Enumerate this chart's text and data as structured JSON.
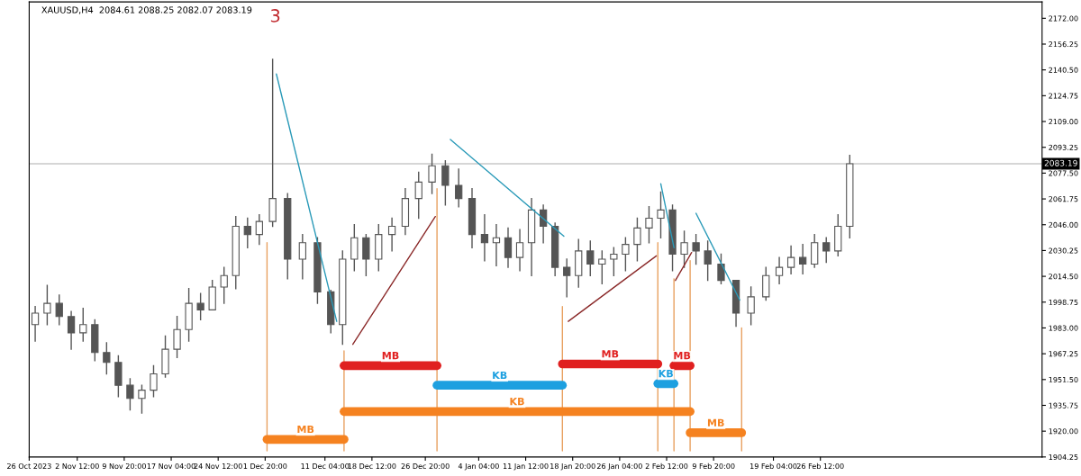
{
  "chart_data": {
    "type": "candlestick",
    "title": "XAUUSD,H4  2084.61 2088.25 2082.07 2083.19",
    "color": "#555555",
    "x": [
      "2023-10-26T22:30",
      "2023-10-28T19:30",
      "2023-10-30T16:30",
      "2023-11-01T13:30",
      "2023-11-03T10:00",
      "2023-11-05T06:00",
      "2023-11-07T02:00",
      "2023-11-08T22:00",
      "2023-11-10T18:00",
      "2023-11-12T14:00",
      "2023-11-14T10:00",
      "2023-11-16T06:00",
      "2023-11-18T02:00",
      "2023-11-19T22:00",
      "2023-11-21T18:00",
      "2023-11-23T14:00",
      "2023-11-25T10:00",
      "2023-11-27T06:00",
      "2023-11-29T02:00",
      "2023-11-30T22:00",
      "2023-12-03T00:00",
      "2023-12-05T08:00",
      "2023-12-07T16:00",
      "2023-12-10T00:00",
      "2023-12-12T02:00",
      "2023-12-13T22:00",
      "2023-12-15T18:00",
      "2023-12-17T14:00",
      "2023-12-19T13:00",
      "2023-12-21T15:00",
      "2023-12-23T17:00",
      "2023-12-25T19:00",
      "2023-12-27T21:00",
      "2023-12-29T23:00",
      "2024-01-01T01:00",
      "2024-01-03T03:00",
      "2024-01-05T02:00",
      "2024-01-06T22:00",
      "2024-01-08T18:00",
      "2024-01-10T14:00",
      "2024-01-12T10:00",
      "2024-01-14T06:00",
      "2024-01-16T02:00",
      "2024-01-17T22:00",
      "2024-01-19T18:00",
      "2024-01-21T14:00",
      "2024-01-23T10:00",
      "2024-01-25T06:00",
      "2024-01-27T02:00",
      "2024-01-28T22:00",
      "2024-01-30T18:00",
      "2024-02-01T14:00",
      "2024-02-03T10:00",
      "2024-02-05T06:00",
      "2024-02-07T02:00",
      "2024-02-08T22:00",
      "2024-02-11T00:00",
      "2024-02-13T08:00",
      "2024-02-15T16:00",
      "2024-02-18T00:00",
      "2024-02-20T02:00",
      "2024-02-21T22:00",
      "2024-02-23T18:00",
      "2024-02-25T14:00",
      "2024-02-27T10:00",
      "2024-02-29T06:00",
      "2024-03-02T02:00"
    ],
    "ohlc": [
      [
        1985,
        1996,
        1975,
        1992
      ],
      [
        1992,
        2009,
        1985,
        1998
      ],
      [
        1998,
        2003,
        1985,
        1990
      ],
      [
        1990,
        1993,
        1970,
        1980
      ],
      [
        1980,
        1995,
        1975,
        1985
      ],
      [
        1985,
        1988,
        1963,
        1968
      ],
      [
        1968,
        1974,
        1955,
        1962
      ],
      [
        1962,
        1966,
        1941,
        1948
      ],
      [
        1948,
        1952,
        1933,
        1940
      ],
      [
        1940,
        1948,
        1931,
        1945
      ],
      [
        1945,
        1960,
        1941,
        1955
      ],
      [
        1955,
        1978,
        1953,
        1970
      ],
      [
        1970,
        1990,
        1965,
        1982
      ],
      [
        1982,
        2007,
        1975,
        1998
      ],
      [
        1998,
        2004,
        1988,
        1994
      ],
      [
        1994,
        2012,
        1994,
        2008
      ],
      [
        2008,
        2020,
        1998,
        2015
      ],
      [
        2015,
        2051,
        2007,
        2045
      ],
      [
        2045,
        2050,
        2032,
        2040
      ],
      [
        2040,
        2052,
        2034,
        2048
      ],
      [
        2048,
        2147,
        2045,
        2062
      ],
      [
        2062,
        2065,
        2013,
        2025
      ],
      [
        2025,
        2040,
        2013,
        2035
      ],
      [
        2035,
        2038,
        1998,
        2005
      ],
      [
        2005,
        2006,
        1980,
        1985
      ],
      [
        1985,
        2030,
        1973,
        2025
      ],
      [
        2025,
        2046,
        2018,
        2038
      ],
      [
        2038,
        2040,
        2015,
        2025
      ],
      [
        2025,
        2046,
        2018,
        2040
      ],
      [
        2040,
        2050,
        2030,
        2045
      ],
      [
        2045,
        2068,
        2040,
        2062
      ],
      [
        2062,
        2078,
        2050,
        2072
      ],
      [
        2072,
        2089,
        2065,
        2082
      ],
      [
        2082,
        2085,
        2058,
        2070
      ],
      [
        2070,
        2080,
        2057,
        2062
      ],
      [
        2062,
        2068,
        2032,
        2040
      ],
      [
        2040,
        2052,
        2024,
        2035
      ],
      [
        2035,
        2046,
        2021,
        2038
      ],
      [
        2038,
        2044,
        2020,
        2026
      ],
      [
        2026,
        2043,
        2018,
        2035
      ],
      [
        2035,
        2062,
        2015,
        2055
      ],
      [
        2055,
        2058,
        2035,
        2045
      ],
      [
        2045,
        2047,
        2015,
        2020
      ],
      [
        2020,
        2025,
        2002,
        2015
      ],
      [
        2015,
        2037,
        2008,
        2030
      ],
      [
        2030,
        2036,
        2015,
        2022
      ],
      [
        2022,
        2030,
        2010,
        2025
      ],
      [
        2025,
        2032,
        2015,
        2028
      ],
      [
        2028,
        2038,
        2018,
        2034
      ],
      [
        2034,
        2050,
        2024,
        2044
      ],
      [
        2044,
        2057,
        2035,
        2050
      ],
      [
        2050,
        2066,
        2038,
        2055
      ],
      [
        2055,
        2058,
        2018,
        2028
      ],
      [
        2028,
        2042,
        2020,
        2035
      ],
      [
        2035,
        2040,
        2022,
        2030
      ],
      [
        2030,
        2036,
        2012,
        2022
      ],
      [
        2022,
        2028,
        2010,
        2012
      ],
      [
        2012,
        2012,
        1984,
        1992
      ],
      [
        1992,
        2008,
        1985,
        2002
      ],
      [
        2002,
        2020,
        2000,
        2015
      ],
      [
        2015,
        2026,
        2010,
        2020
      ],
      [
        2020,
        2033,
        2016,
        2026
      ],
      [
        2026,
        2034,
        2016,
        2022
      ],
      [
        2022,
        2040,
        2020,
        2035
      ],
      [
        2035,
        2038,
        2023,
        2030
      ],
      [
        2030,
        2052,
        2027,
        2045
      ],
      [
        2045,
        2088.25,
        2038,
        2083.19
      ]
    ],
    "series": [
      {
        "type": "line",
        "color": "#e8a060",
        "x": [
          "2023-12-02T03:00",
          "2023-12-02T03:00"
        ],
        "values": [
          2035,
          1908
        ]
      },
      {
        "type": "line",
        "color": "#e8a060",
        "x": [
          "2023-12-14T03:30",
          "2023-12-14T03:30"
        ],
        "values": [
          1969,
          1908
        ]
      },
      {
        "type": "line",
        "color": "#e8a060",
        "x": [
          "2023-12-28T15:45",
          "2023-12-28T15:45"
        ],
        "values": [
          2068,
          1908
        ]
      },
      {
        "type": "line",
        "color": "#e8a060",
        "x": [
          "2024-01-17T05:30",
          "2024-01-17T05:30"
        ],
        "values": [
          1996,
          1908
        ]
      },
      {
        "type": "line",
        "color": "#e8a060",
        "x": [
          "2024-02-01T03:00",
          "2024-02-01T03:00"
        ],
        "values": [
          2035,
          1908
        ]
      },
      {
        "type": "line",
        "color": "#e8a060",
        "x": [
          "2024-02-03T15:30",
          "2024-02-03T15:30"
        ],
        "values": [
          2013,
          1908
        ]
      },
      {
        "type": "line",
        "color": "#e8a060",
        "x": [
          "2024-02-06T04:00",
          "2024-02-06T04:00"
        ],
        "values": [
          2024,
          1908
        ]
      },
      {
        "type": "line",
        "color": "#e8a060",
        "x": [
          "2024-02-14T05:00",
          "2024-02-14T05:00"
        ],
        "values": [
          1983,
          1908
        ]
      },
      {
        "type": "line",
        "name": "MB",
        "color": "#f58220",
        "x": [
          "2023-12-02T03:00",
          "2023-12-14T03:30"
        ],
        "values": [
          1915,
          1915
        ]
      },
      {
        "type": "line",
        "name": "MB",
        "color": "#e02020",
        "x": [
          "2023-12-14T03:30",
          "2023-12-28T15:45"
        ],
        "values": [
          1960,
          1960
        ]
      },
      {
        "type": "line",
        "name": "KB",
        "color": "#1ea0e0",
        "x": [
          "2023-12-28T15:45",
          "2024-01-17T05:30"
        ],
        "values": [
          1948,
          1948
        ]
      },
      {
        "type": "line",
        "name": "KB",
        "color": "#f58220",
        "x": [
          "2023-12-14T03:30",
          "2024-02-06T04:00"
        ],
        "values": [
          1932,
          1932
        ]
      },
      {
        "type": "line",
        "name": "MB",
        "color": "#e02020",
        "x": [
          "2024-01-17T05:30",
          "2024-02-01T03:00"
        ],
        "values": [
          1961,
          1961
        ]
      },
      {
        "type": "line",
        "name": "KB",
        "color": "#1ea0e0",
        "x": [
          "2024-02-01T03:00",
          "2024-02-03T15:30"
        ],
        "values": [
          1949,
          1949
        ]
      },
      {
        "type": "line",
        "name": "MB",
        "color": "#e02020",
        "x": [
          "2024-02-03T15:30",
          "2024-02-06T04:00"
        ],
        "values": [
          1960,
          1960
        ]
      },
      {
        "type": "line",
        "name": "MB",
        "color": "#f58220",
        "x": [
          "2024-02-06T04:00",
          "2024-02-14T05:00"
        ],
        "values": [
          1919,
          1919
        ]
      },
      {
        "type": "line",
        "color": "#2a9ab8",
        "x": [
          "2023-12-03T14:00",
          "2023-12-13T00:00"
        ],
        "values": [
          2138,
          1987
        ]
      },
      {
        "type": "line",
        "color": "#8b2a2a",
        "x": [
          "2023-12-15T12:30",
          "2023-12-28T09:30"
        ],
        "values": [
          1973,
          2051
        ]
      },
      {
        "type": "line",
        "color": "#2a9ab8",
        "x": [
          "2023-12-30T17:45",
          "2024-01-17T11:00"
        ],
        "values": [
          2098,
          2039
        ]
      },
      {
        "type": "line",
        "color": "#8b2a2a",
        "x": [
          "2024-01-18T03:30",
          "2024-01-31T21:30"
        ],
        "values": [
          1987,
          2027
        ]
      },
      {
        "type": "line",
        "color": "#2a9ab8",
        "x": [
          "2024-02-01T14:00",
          "2024-02-03T15:30"
        ],
        "values": [
          2071,
          2032
        ]
      },
      {
        "type": "line",
        "color": "#8b2a2a",
        "x": [
          "2024-02-03T21:00",
          "2024-02-06T09:30"
        ],
        "values": [
          2012,
          2029
        ]
      },
      {
        "type": "line",
        "color": "#2a9ab8",
        "x": [
          "2024-02-07T02:00",
          "2024-02-13T22:00"
        ],
        "values": [
          2053,
          2000
        ]
      }
    ],
    "ref_lines": [
      {
        "axis": "y",
        "value": 2083.19,
        "label": "2083.19",
        "color": "#c8c8c8"
      }
    ],
    "annotations": [
      "3"
    ],
    "xlim": [
      "2023-10-26T00:00",
      "2024-04-01T02:30"
    ],
    "ylim": [
      1904.25,
      2182
    ],
    "xticks": [
      {
        "value": "2023-10-26T00:00",
        "label": "26 Oct 2023"
      },
      {
        "value": "2023-11-02T12:00",
        "label": "2 Nov 12:00"
      },
      {
        "value": "2023-11-09T20:00",
        "label": "9 Nov 20:00"
      },
      {
        "value": "2023-11-17T04:00",
        "label": "17 Nov 04:00"
      },
      {
        "value": "2023-11-24T12:00",
        "label": "24 Nov 12:00"
      },
      {
        "value": "2023-12-01T20:00",
        "label": "1 Dec 20:00"
      },
      {
        "value": "2023-12-11T04:00",
        "label": "11 Dec 04:00"
      },
      {
        "value": "2023-12-18T12:00",
        "label": "18 Dec 12:00"
      },
      {
        "value": "2023-12-26T20:00",
        "label": "26 Dec 20:00"
      },
      {
        "value": "2024-01-04T04:00",
        "label": "4 Jan 04:00"
      },
      {
        "value": "2024-01-11T12:00",
        "label": "11 Jan 12:00"
      },
      {
        "value": "2024-01-18T20:00",
        "label": "18 Jan 20:00"
      },
      {
        "value": "2024-01-26T04:00",
        "label": "26 Jan 04:00"
      },
      {
        "value": "2024-02-02T12:00",
        "label": "2 Feb 12:00"
      },
      {
        "value": "2024-02-09T20:00",
        "label": "9 Feb 20:00"
      },
      {
        "value": "2024-02-19T04:00",
        "label": "19 Feb 04:00"
      },
      {
        "value": "2024-02-26T12:00",
        "label": "26 Feb 12:00"
      }
    ],
    "yticks": [
      1904.25,
      {
        "value": 1920,
        "label": "1920.00"
      },
      1935.75,
      {
        "value": 1951.5,
        "label": "1951.50"
      },
      1967.25,
      {
        "value": 1983,
        "label": "1983.00"
      },
      1998.75,
      {
        "value": 2014.5,
        "label": "2014.50"
      },
      2030.25,
      {
        "value": 2046,
        "label": "2046.00"
      },
      2061.75,
      {
        "value": 2077.5,
        "label": "2077.50"
      },
      2093.25,
      {
        "value": 2109,
        "label": "2109.00"
      },
      2124.75,
      {
        "value": 2140.5,
        "label": "2140.50"
      },
      2156.25,
      {
        "value": 2172,
        "label": "2172.00"
      }
    ],
    "grid": false,
    "legend": false
  }
}
